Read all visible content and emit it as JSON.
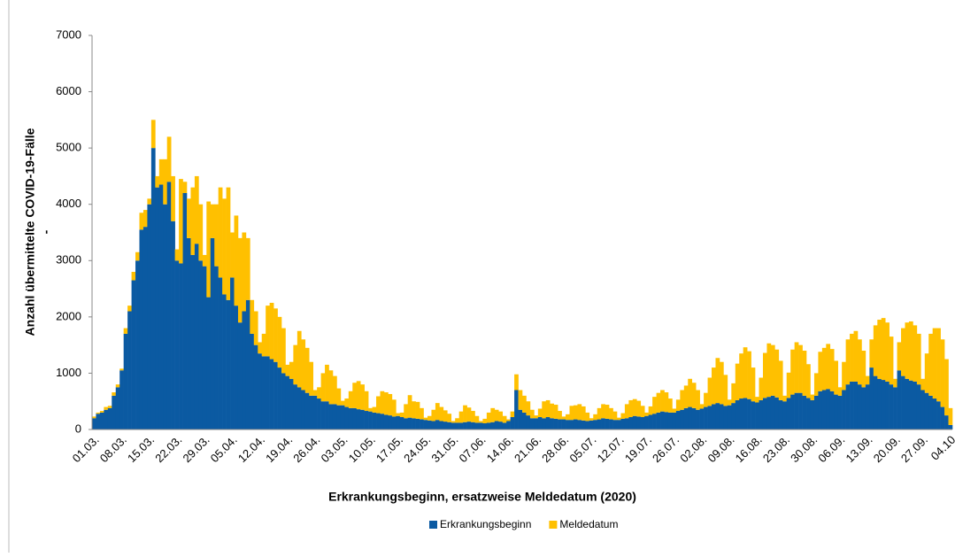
{
  "chart_data": {
    "type": "stacked_bar",
    "y_label": [
      "Anzahl übermittelte COVID-19-Fälle",
      "-"
    ],
    "x_label": "Erkrankungsbeginn, ersatzweise Meldedatum (2020)",
    "ylim": [
      0,
      7000
    ],
    "yticks": [
      0,
      1000,
      2000,
      3000,
      4000,
      5000,
      6000,
      7000
    ],
    "grid": false,
    "legend": "bottom",
    "categories": [
      "01.03.",
      null,
      null,
      null,
      null,
      null,
      null,
      "08.03.",
      null,
      null,
      null,
      null,
      null,
      null,
      "15.03.",
      null,
      null,
      null,
      null,
      null,
      null,
      "22.03.",
      null,
      null,
      null,
      null,
      null,
      null,
      "29.03.",
      null,
      null,
      null,
      null,
      null,
      null,
      "05.04.",
      null,
      null,
      null,
      null,
      null,
      null,
      "12.04.",
      null,
      null,
      null,
      null,
      null,
      null,
      "19.04.",
      null,
      null,
      null,
      null,
      null,
      null,
      "26.04.",
      null,
      null,
      null,
      null,
      null,
      null,
      "03.05.",
      null,
      null,
      null,
      null,
      null,
      null,
      "10.05.",
      null,
      null,
      null,
      null,
      null,
      null,
      "17.05.",
      null,
      null,
      null,
      null,
      null,
      null,
      "24.05.",
      null,
      null,
      null,
      null,
      null,
      null,
      "31.05.",
      null,
      null,
      null,
      null,
      null,
      null,
      "07.06.",
      null,
      null,
      null,
      null,
      null,
      null,
      "14.06.",
      null,
      null,
      null,
      null,
      null,
      null,
      "21.06.",
      null,
      null,
      null,
      null,
      null,
      null,
      "28.06.",
      null,
      null,
      null,
      null,
      null,
      null,
      "05.07.",
      null,
      null,
      null,
      null,
      null,
      null,
      "12.07.",
      null,
      null,
      null,
      null,
      null,
      null,
      "19.07.",
      null,
      null,
      null,
      null,
      null,
      null,
      "26.07.",
      null,
      null,
      null,
      null,
      null,
      null,
      "02.08.",
      null,
      null,
      null,
      null,
      null,
      null,
      "09.08.",
      null,
      null,
      null,
      null,
      null,
      null,
      "16.08.",
      null,
      null,
      null,
      null,
      null,
      null,
      "23.08.",
      null,
      null,
      null,
      null,
      null,
      null,
      "30.08.",
      null,
      null,
      null,
      null,
      null,
      null,
      "06.09.",
      null,
      null,
      null,
      null,
      null,
      null,
      "13.09.",
      null,
      null,
      null,
      null,
      null,
      null,
      "20.09.",
      null,
      null,
      null,
      null,
      null,
      null,
      "27.09.",
      null,
      null,
      null,
      null,
      null,
      null,
      "04.10"
    ],
    "series": [
      {
        "name": "Erkrankungsbeginn",
        "color": "#0b5aa2",
        "values": [
          200,
          280,
          300,
          350,
          380,
          600,
          750,
          1050,
          1700,
          2100,
          2650,
          3000,
          3550,
          3600,
          4000,
          5000,
          4300,
          4350,
          4000,
          4400,
          3700,
          3000,
          2950,
          4200,
          3400,
          3100,
          3300,
          3000,
          2900,
          2350,
          3400,
          2900,
          2700,
          2400,
          2300,
          2700,
          2200,
          1900,
          2100,
          2300,
          1700,
          1500,
          1350,
          1300,
          1300,
          1250,
          1200,
          1100,
          1000,
          950,
          900,
          800,
          750,
          700,
          650,
          600,
          600,
          550,
          500,
          500,
          450,
          450,
          430,
          430,
          400,
          380,
          380,
          360,
          350,
          330,
          320,
          300,
          290,
          280,
          260,
          250,
          230,
          240,
          220,
          200,
          210,
          200,
          190,
          180,
          170,
          160,
          150,
          170,
          150,
          140,
          130,
          120,
          120,
          120,
          130,
          140,
          130,
          120,
          120,
          110,
          120,
          130,
          150,
          140,
          120,
          150,
          220,
          700,
          350,
          300,
          250,
          200,
          200,
          220,
          200,
          220,
          200,
          190,
          180,
          180,
          170,
          170,
          180,
          170,
          160,
          150,
          160,
          170,
          180,
          200,
          190,
          180,
          170,
          170,
          190,
          200,
          220,
          240,
          230,
          220,
          240,
          260,
          280,
          300,
          320,
          310,
          300,
          300,
          330,
          350,
          380,
          400,
          380,
          350,
          370,
          400,
          420,
          450,
          470,
          450,
          420,
          430,
          470,
          520,
          550,
          560,
          540,
          500,
          480,
          520,
          560,
          580,
          600,
          570,
          520,
          500,
          560,
          620,
          650,
          650,
          600,
          560,
          520,
          600,
          680,
          700,
          720,
          680,
          620,
          600,
          700,
          800,
          850,
          850,
          800,
          750,
          800,
          1100,
          950,
          900,
          880,
          850,
          800,
          750,
          1050,
          950,
          900,
          870,
          850,
          800,
          700,
          650,
          600,
          550,
          500,
          400,
          250,
          80
        ]
      },
      {
        "name": "Meldedatum",
        "color": "#ffc000",
        "values": [
          30,
          20,
          30,
          50,
          40,
          60,
          50,
          30,
          100,
          100,
          150,
          150,
          300,
          300,
          100,
          500,
          200,
          450,
          800,
          800,
          800,
          200,
          1500,
          200,
          700,
          1200,
          1200,
          1000,
          200,
          1700,
          600,
          1100,
          1600,
          1700,
          2000,
          800,
          1600,
          1500,
          1400,
          1100,
          600,
          600,
          200,
          400,
          900,
          1000,
          950,
          900,
          800,
          200,
          300,
          700,
          1000,
          900,
          800,
          600,
          100,
          200,
          500,
          650,
          600,
          500,
          300,
          80,
          150,
          300,
          450,
          500,
          450,
          350,
          60,
          100,
          300,
          400,
          400,
          380,
          300,
          50,
          80,
          250,
          400,
          300,
          300,
          200,
          40,
          80,
          200,
          300,
          250,
          200,
          150,
          30,
          80,
          200,
          300,
          250,
          200,
          120,
          30,
          80,
          180,
          250,
          200,
          180,
          120,
          30,
          100,
          280,
          350,
          300,
          250,
          150,
          50,
          150,
          300,
          300,
          260,
          250,
          150,
          50,
          100,
          250,
          250,
          280,
          250,
          150,
          40,
          100,
          200,
          250,
          250,
          200,
          150,
          40,
          100,
          250,
          300,
          300,
          280,
          200,
          60,
          150,
          300,
          350,
          380,
          350,
          250,
          70,
          200,
          350,
          400,
          500,
          450,
          350,
          80,
          250,
          500,
          650,
          800,
          750,
          550,
          100,
          350,
          650,
          800,
          900,
          850,
          600,
          100,
          400,
          800,
          950,
          900,
          850,
          700,
          100,
          450,
          800,
          900,
          850,
          800,
          600,
          100,
          400,
          700,
          750,
          800,
          750,
          600,
          150,
          500,
          800,
          850,
          900,
          800,
          650,
          150,
          500,
          900,
          1050,
          1100,
          1050,
          850,
          150,
          500,
          850,
          1000,
          1050,
          1000,
          900,
          200,
          700,
          1100,
          1250,
          1300,
          1200,
          1000,
          300
        ]
      }
    ]
  }
}
